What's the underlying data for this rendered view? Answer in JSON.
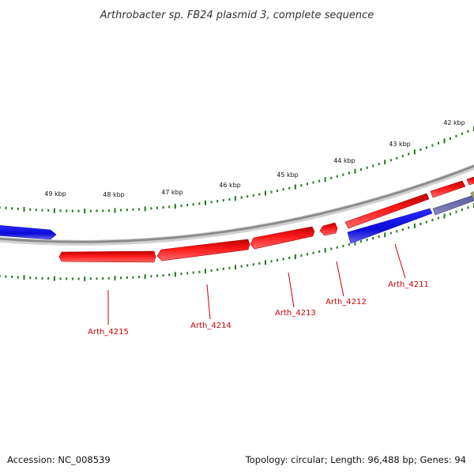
{
  "title": "Arthrobacter sp. FB24 plasmid 3, complete sequence",
  "footer": {
    "accession": "Accession: NC_008539",
    "summary": "Topology: circular; Length: 96,488 bp; Genes: 94"
  },
  "colors": {
    "ring": "#8a8a8a",
    "ruler": "#1d7a1d",
    "forward_gene": "#ee0000",
    "reverse_gene": "#1414e0",
    "muted_gene": "#4a4a8c",
    "label": "#cc0000"
  },
  "ruler_labels": [
    {
      "kbp": 42,
      "text": "42 kbp"
    },
    {
      "kbp": 43,
      "text": "43 kbp"
    },
    {
      "kbp": 44,
      "text": "44 kbp"
    },
    {
      "kbp": 45,
      "text": "45 kbp"
    },
    {
      "kbp": 46,
      "text": "46 kbp"
    },
    {
      "kbp": 47,
      "text": "47 kbp"
    },
    {
      "kbp": 48,
      "text": "48 kbp"
    },
    {
      "kbp": 49,
      "text": "49 kbp"
    }
  ],
  "genes": [
    {
      "id": "Arth_4211",
      "label": "Arth_4211"
    },
    {
      "id": "Arth_4212",
      "label": "Arth_4212"
    },
    {
      "id": "Arth_4213",
      "label": "Arth_4213"
    },
    {
      "id": "Arth_4214",
      "label": "Arth_4214"
    },
    {
      "id": "Arth_4215",
      "label": "Arth_4215"
    }
  ]
}
